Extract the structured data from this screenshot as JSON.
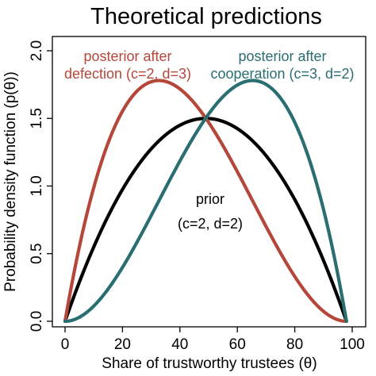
{
  "chart_data": {
    "type": "line",
    "title": "Theoretical predictions",
    "xlabel": "Share of trustworthy trustees (θ)",
    "ylabel": "Probability density function (p(θ))",
    "xlim": [
      0,
      100
    ],
    "ylim": [
      0,
      2.0
    ],
    "x_ticks": [
      "0",
      "20",
      "40",
      "60",
      "80",
      "100"
    ],
    "y_ticks": [
      "0.0",
      "0.5",
      "1.0",
      "1.5",
      "2.0"
    ],
    "grid": false,
    "legend": "none",
    "series": [
      {
        "annotation": [
          "prior",
          "(c=2, d=2)"
        ],
        "color": "#000000",
        "c": 2,
        "d": 2,
        "x": [
          0,
          10,
          20,
          30,
          40,
          50,
          60,
          70,
          80,
          90,
          98
        ],
        "y": [
          0.0,
          0.54,
          0.96,
          1.26,
          1.44,
          1.5,
          1.44,
          1.26,
          0.96,
          0.54,
          0.0
        ]
      },
      {
        "annotation": [
          "posterior after",
          "defection (c=2, d=3)"
        ],
        "color": "#b5473a",
        "c": 2,
        "d": 3,
        "x": [
          0,
          10,
          20,
          30,
          33,
          40,
          50,
          60,
          70,
          80,
          90,
          98
        ],
        "y": [
          0.0,
          0.97,
          1.54,
          1.76,
          1.78,
          1.73,
          1.5,
          1.15,
          0.76,
          0.38,
          0.11,
          0.0
        ]
      },
      {
        "annotation": [
          "posterior after",
          "cooperation (c=3, d=2)"
        ],
        "color": "#2a6e72",
        "c": 3,
        "d": 2,
        "x": [
          0,
          10,
          20,
          30,
          40,
          50,
          60,
          67,
          70,
          80,
          90,
          98
        ],
        "y": [
          0.0,
          0.11,
          0.38,
          0.76,
          1.15,
          1.5,
          1.73,
          1.78,
          1.76,
          1.54,
          0.97,
          0.0
        ]
      }
    ]
  }
}
